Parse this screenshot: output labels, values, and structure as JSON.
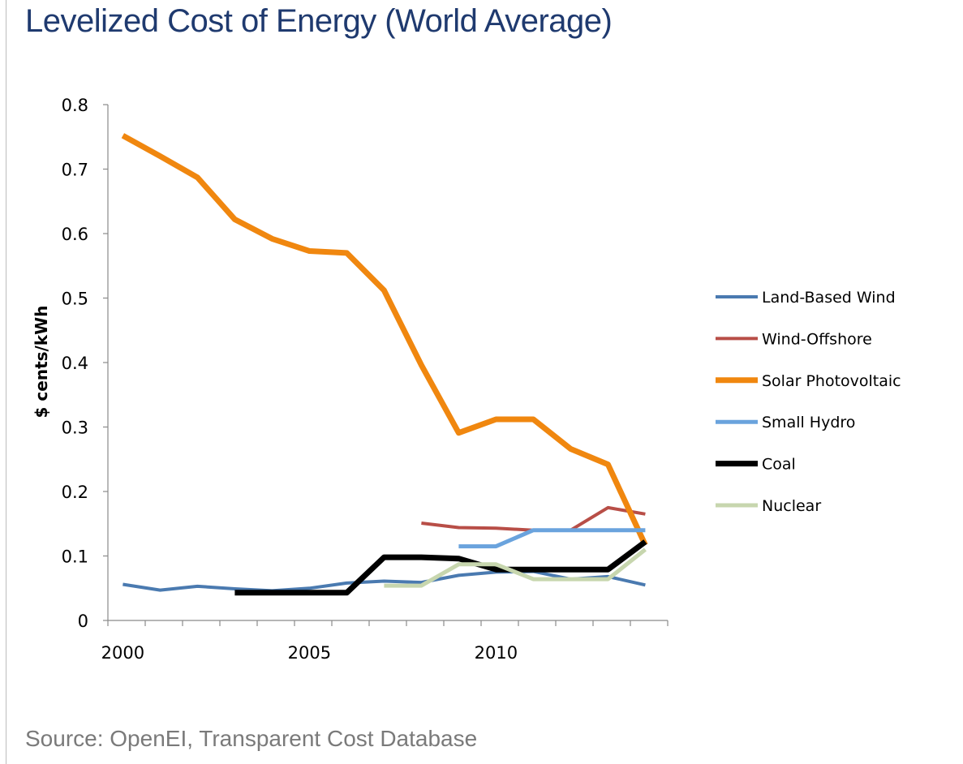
{
  "title": "Levelized Cost of Energy (World Average)",
  "source": "Source: OpenEI, Transparent Cost Database",
  "chart_data": {
    "type": "line",
    "title": "Levelized Cost of Energy (World Average)",
    "xlabel": "",
    "ylabel": "$ cents/kWh",
    "xlim": [
      1999.6,
      2014.6
    ],
    "ylim": [
      0,
      0.8
    ],
    "xticks": [
      2000,
      2005,
      2010
    ],
    "yticks": [
      0,
      0.1,
      0.2,
      0.3,
      0.4,
      0.5,
      0.6,
      0.7,
      0.8
    ],
    "ytick_labels": [
      "0",
      "0.1",
      "0.2",
      "0.3",
      "0.4",
      "0.5",
      "0.6",
      "0.7",
      "0.8"
    ],
    "grid": false,
    "legend_position": "right",
    "series": [
      {
        "name": "Land-Based Wind",
        "color": "#4a7ab0",
        "width": 4,
        "points": [
          [
            2000,
            0.056
          ],
          [
            2001,
            0.047
          ],
          [
            2002,
            0.053
          ],
          [
            2003,
            0.049
          ],
          [
            2004,
            0.046
          ],
          [
            2005,
            0.05
          ],
          [
            2006,
            0.058
          ],
          [
            2007,
            0.061
          ],
          [
            2008,
            0.059
          ],
          [
            2009,
            0.07
          ],
          [
            2010,
            0.075
          ],
          [
            2011,
            0.076
          ],
          [
            2012,
            0.064
          ],
          [
            2013,
            0.068
          ],
          [
            2014,
            0.055
          ]
        ]
      },
      {
        "name": "Wind-Offshore",
        "color": "#b84e47",
        "width": 4,
        "points": [
          [
            2008,
            0.151
          ],
          [
            2009,
            0.144
          ],
          [
            2010,
            0.143
          ],
          [
            2011,
            0.14
          ],
          [
            2012,
            0.14
          ],
          [
            2013,
            0.175
          ],
          [
            2014,
            0.165
          ]
        ]
      },
      {
        "name": "Solar Photovoltaic",
        "color": "#f0870f",
        "width": 7,
        "points": [
          [
            2000,
            0.752
          ],
          [
            2001,
            0.72
          ],
          [
            2002,
            0.687
          ],
          [
            2003,
            0.622
          ],
          [
            2004,
            0.592
          ],
          [
            2005,
            0.573
          ],
          [
            2006,
            0.57
          ],
          [
            2007,
            0.512
          ],
          [
            2008,
            0.396
          ],
          [
            2009,
            0.291
          ],
          [
            2010,
            0.312
          ],
          [
            2011,
            0.312
          ],
          [
            2012,
            0.266
          ],
          [
            2013,
            0.242
          ],
          [
            2014,
            0.117
          ]
        ]
      },
      {
        "name": "Small Hydro",
        "color": "#6aa3dd",
        "width": 5,
        "points": [
          [
            2009,
            0.115
          ],
          [
            2010,
            0.115
          ],
          [
            2011,
            0.14
          ],
          [
            2012,
            0.14
          ],
          [
            2013,
            0.14
          ],
          [
            2014,
            0.14
          ]
        ]
      },
      {
        "name": "Coal",
        "color": "#000000",
        "width": 7,
        "points": [
          [
            2003,
            0.043
          ],
          [
            2004,
            0.043
          ],
          [
            2005,
            0.043
          ],
          [
            2006,
            0.043
          ],
          [
            2007,
            0.098
          ],
          [
            2008,
            0.098
          ],
          [
            2009,
            0.096
          ],
          [
            2010,
            0.079
          ],
          [
            2011,
            0.079
          ],
          [
            2012,
            0.079
          ],
          [
            2013,
            0.079
          ],
          [
            2014,
            0.122
          ]
        ]
      },
      {
        "name": "Nuclear",
        "color": "#c7d6ae",
        "width": 5,
        "points": [
          [
            2007,
            0.054
          ],
          [
            2008,
            0.054
          ],
          [
            2009,
            0.087
          ],
          [
            2010,
            0.087
          ],
          [
            2011,
            0.064
          ],
          [
            2012,
            0.064
          ],
          [
            2013,
            0.064
          ],
          [
            2014,
            0.11
          ]
        ]
      }
    ]
  }
}
